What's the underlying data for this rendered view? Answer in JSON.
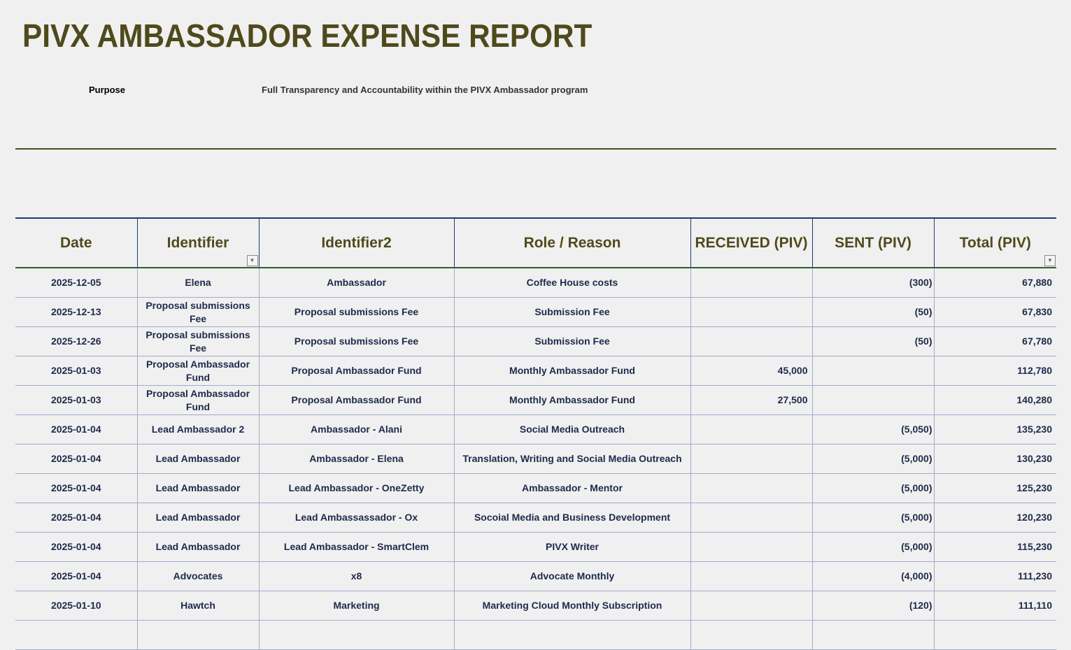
{
  "title": "PIVX AMBASSADOR EXPENSE REPORT",
  "purpose_label": "Purpose",
  "purpose_text": "Full Transparency and Accountability within the PIVX Ambassador program",
  "columns": [
    "Date",
    "Identifier",
    "Identifier2",
    "Role / Reason",
    "RECEIVED (PIV)",
    "SENT (PIV)",
    "Total (PIV)"
  ],
  "rows": [
    [
      "2025-12-05",
      "Elena",
      "Ambassador",
      "Coffee House costs",
      "",
      "(300)",
      "67,880"
    ],
    [
      "2025-12-13",
      "Proposal submissions Fee",
      "Proposal submissions Fee",
      "Submission Fee",
      "",
      "(50)",
      "67,830"
    ],
    [
      "2025-12-26",
      "Proposal submissions Fee",
      "Proposal submissions Fee",
      "Submission Fee",
      "",
      "(50)",
      "67,780"
    ],
    [
      "2025-01-03",
      "Proposal Ambassador Fund",
      "Proposal Ambassador Fund",
      "Monthly Ambassador Fund",
      "45,000",
      "",
      "112,780"
    ],
    [
      "2025-01-03",
      "Proposal Ambassador Fund",
      "Proposal Ambassador Fund",
      "Monthly Ambassador Fund",
      "27,500",
      "",
      "140,280"
    ],
    [
      "2025-01-04",
      "Lead Ambassador 2",
      "Ambassador - Alani",
      "Social Media Outreach",
      "",
      "(5,050)",
      "135,230"
    ],
    [
      "2025-01-04",
      "Lead Ambassador",
      "Ambassador - Elena",
      "Translation, Writing and Social Media Outreach",
      "",
      "(5,000)",
      "130,230"
    ],
    [
      "2025-01-04",
      "Lead Ambassador",
      "Lead Ambassador - OneZetty",
      "Ambassador - Mentor",
      "",
      "(5,000)",
      "125,230"
    ],
    [
      "2025-01-04",
      "Lead Ambassador",
      "Lead Ambassassador - Ox",
      "Socoial Media and Business Development",
      "",
      "(5,000)",
      "120,230"
    ],
    [
      "2025-01-04",
      "Lead Ambassador",
      "Lead Ambassador - SmartClem",
      "PIVX Writer",
      "",
      "(5,000)",
      "115,230"
    ],
    [
      "2025-01-04",
      "Advocates",
      "x8",
      "Advocate Monthly",
      "",
      "(4,000)",
      "111,230"
    ],
    [
      "2025-01-10",
      "Hawtch",
      "Marketing",
      "Marketing Cloud Monthly Subscription",
      "",
      "(120)",
      "111,110"
    ],
    [
      "",
      "",
      "",
      "",
      "",
      "",
      ""
    ]
  ]
}
